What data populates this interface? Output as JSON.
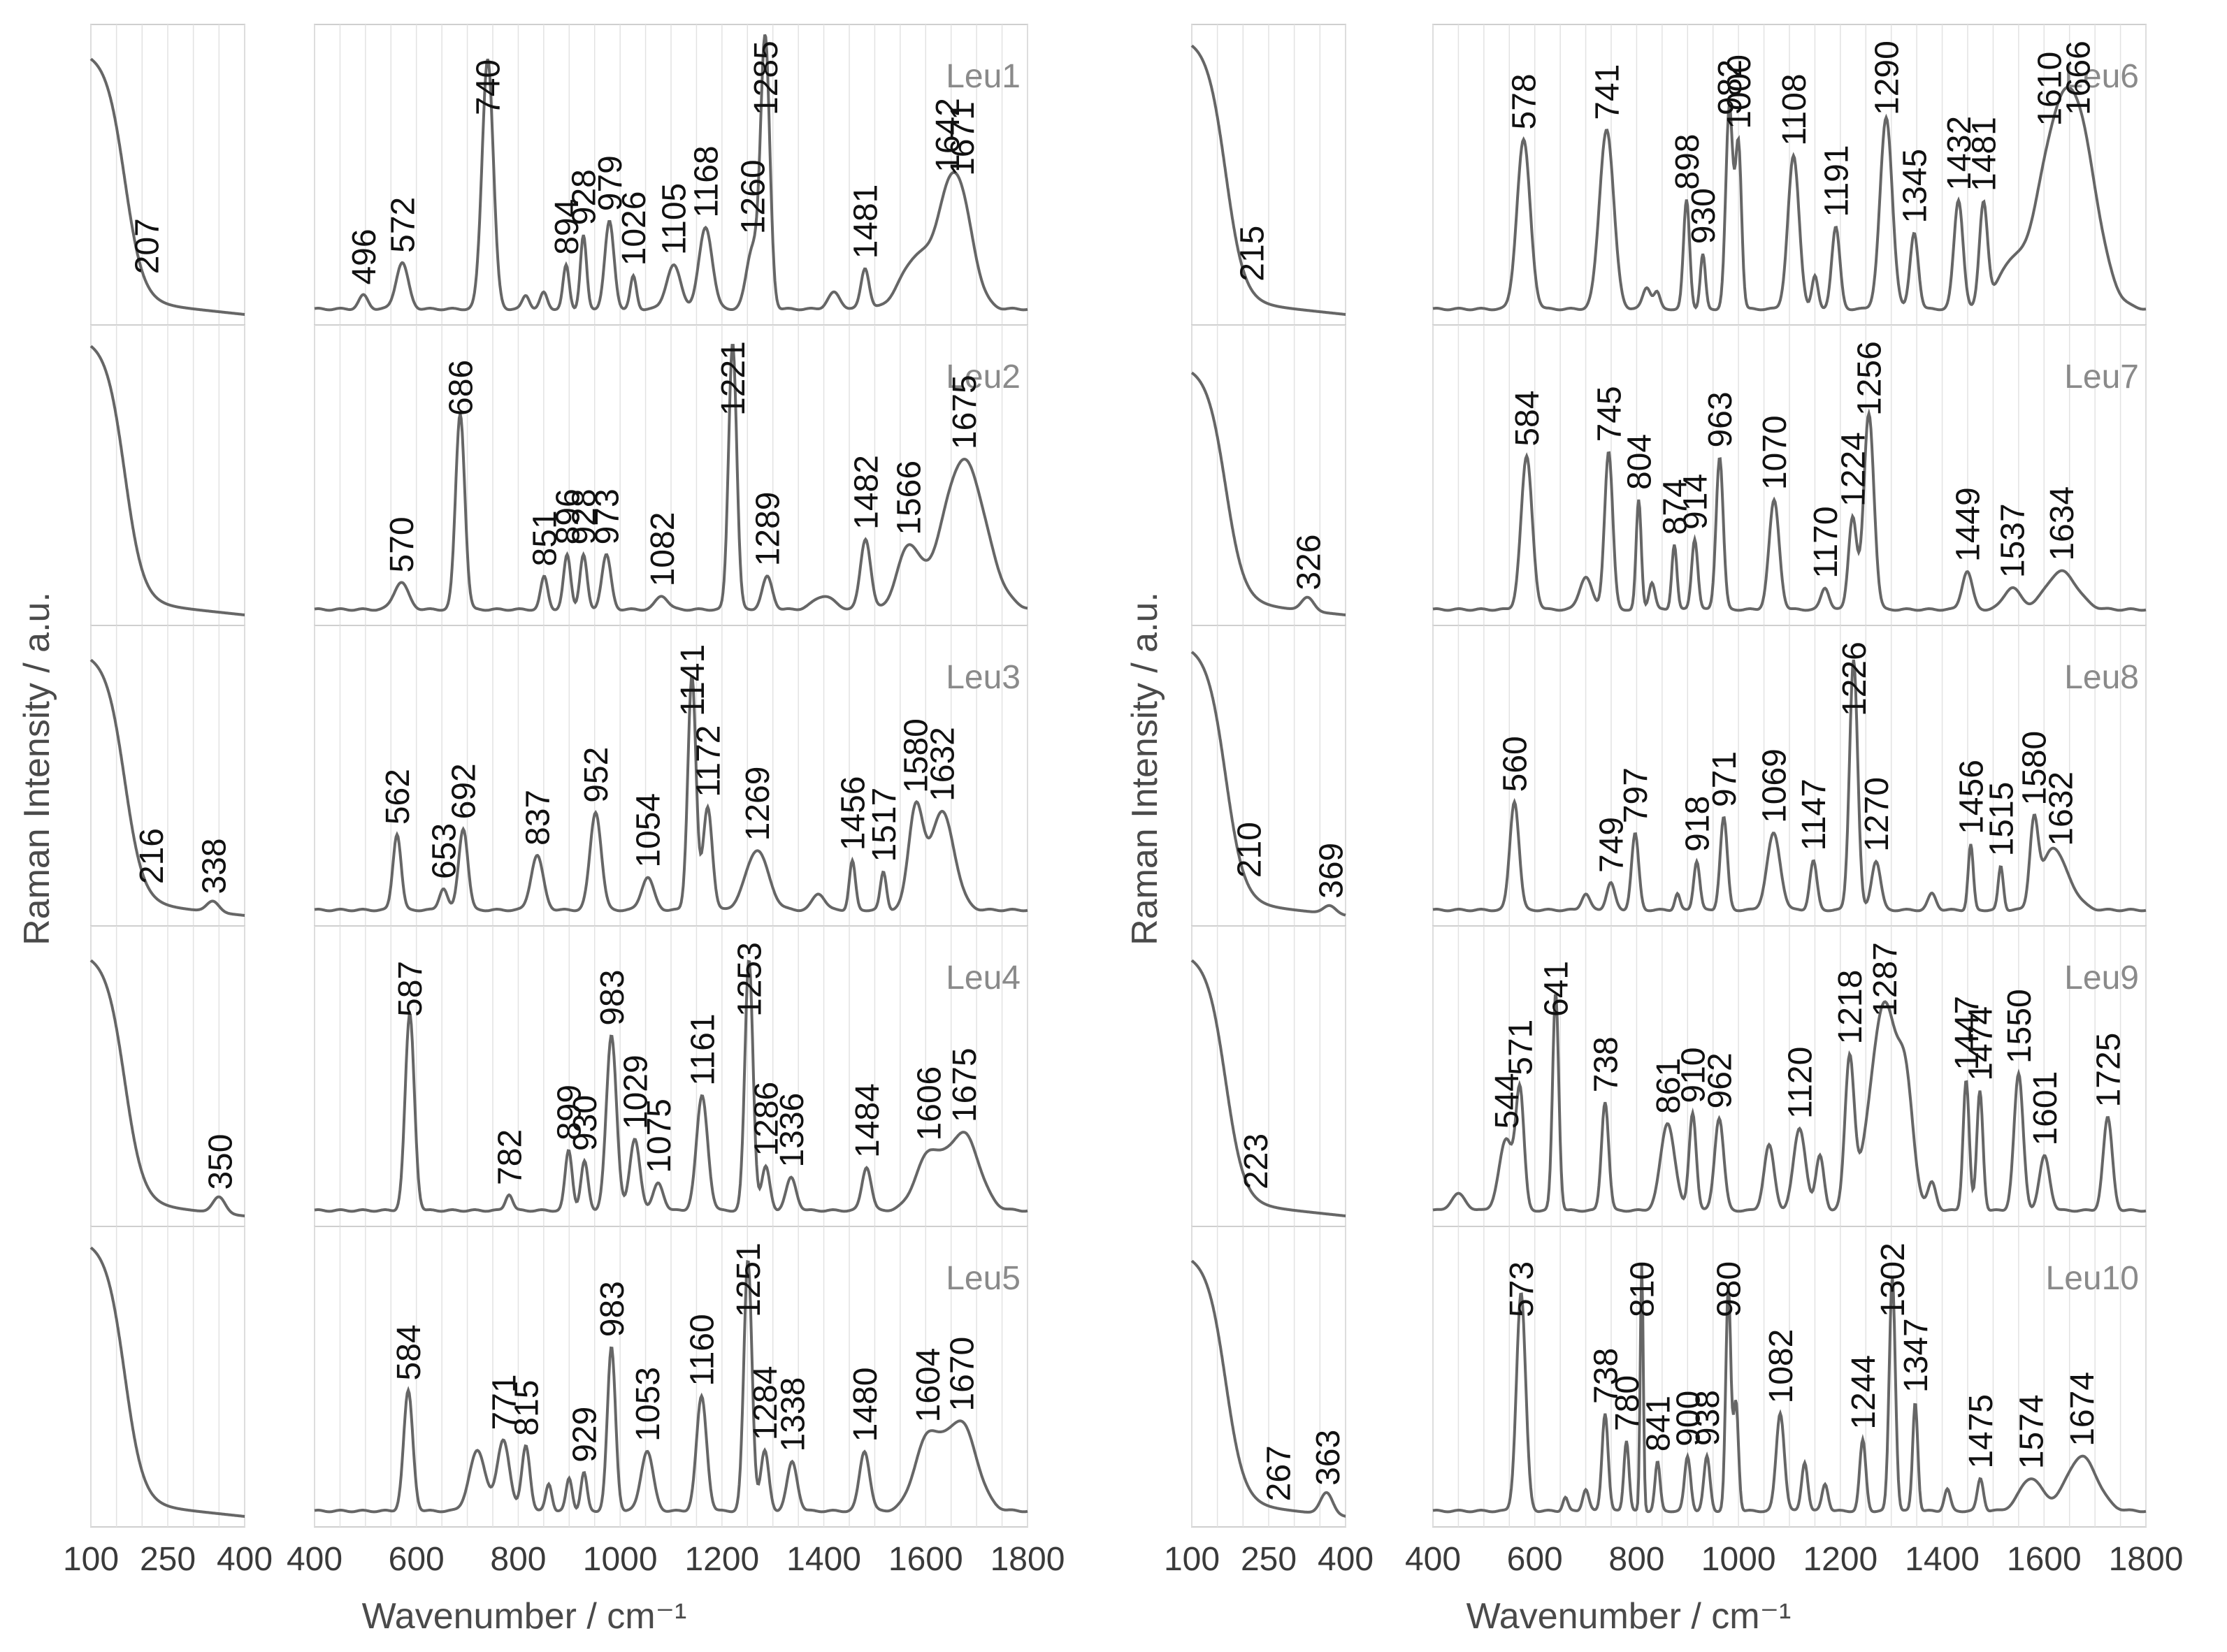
{
  "chart_data": {
    "type": "line",
    "colors": {
      "line": "#666666",
      "grid": "#e2e2e2",
      "frame": "#cfcfcf",
      "text": "#3a3a3a",
      "label": "#8a8a8a"
    },
    "ylabel": "Raman Intensity / a.u.",
    "xlabel": "Wavenumber / cm⁻¹",
    "low_xticks": [
      100,
      250,
      400
    ],
    "high_xticks": [
      400,
      600,
      800,
      1000,
      1200,
      1400,
      1600,
      1800
    ],
    "low_xlim": [
      100,
      400
    ],
    "high_xlim": [
      400,
      1800
    ],
    "samples": [
      {
        "name": "Leu1",
        "low": {
          "peaks": [
            207
          ],
          "labels": [
            207
          ],
          "decay": 0.9,
          "hump": null
        },
        "peaks": [
          [
            496,
            0.05,
            9
          ],
          [
            572,
            0.17,
            12
          ],
          [
            740,
            0.92,
            11
          ],
          [
            815,
            0.05,
            7
          ],
          [
            850,
            0.06,
            7
          ],
          [
            894,
            0.16,
            6
          ],
          [
            928,
            0.27,
            6
          ],
          [
            979,
            0.32,
            9
          ],
          [
            1026,
            0.12,
            6
          ],
          [
            1105,
            0.16,
            14
          ],
          [
            1168,
            0.3,
            13
          ],
          [
            1260,
            0.22,
            12
          ],
          [
            1285,
            0.98,
            9
          ],
          [
            1481,
            0.15,
            8
          ],
          [
            1420,
            0.06,
            12
          ],
          [
            1642,
            0.28,
            26
          ],
          [
            1671,
            0.3,
            26
          ],
          [
            1580,
            0.18,
            30
          ]
        ],
        "labels": [
          496,
          572,
          740,
          894,
          928,
          979,
          1026,
          1105,
          1168,
          1260,
          1285,
          1481,
          1642,
          1671
        ]
      },
      {
        "name": "Leu2",
        "low": {
          "peaks": [],
          "labels": [],
          "decay": 0.95,
          "hump": null
        },
        "peaks": [
          [
            570,
            0.1,
            14
          ],
          [
            686,
            0.72,
            9
          ],
          [
            851,
            0.12,
            7
          ],
          [
            896,
            0.2,
            7
          ],
          [
            928,
            0.2,
            7
          ],
          [
            973,
            0.2,
            9
          ],
          [
            1082,
            0.05,
            12
          ],
          [
            1221,
            0.98,
            8
          ],
          [
            1289,
            0.12,
            10
          ],
          [
            1482,
            0.26,
            10
          ],
          [
            1566,
            0.22,
            22
          ],
          [
            1675,
            0.55,
            42
          ],
          [
            1400,
            0.05,
            20
          ]
        ],
        "labels": [
          570,
          686,
          851,
          896,
          928,
          973,
          1082,
          1221,
          1289,
          1482,
          1566,
          1675
        ]
      },
      {
        "name": "Leu3",
        "low": {
          "peaks": [
            216,
            338
          ],
          "labels": [
            216,
            338
          ],
          "decay": 0.9,
          "hump": [
            338,
            0.04
          ]
        },
        "peaks": [
          [
            562,
            0.28,
            8
          ],
          [
            653,
            0.08,
            8
          ],
          [
            692,
            0.3,
            9
          ],
          [
            837,
            0.2,
            12
          ],
          [
            952,
            0.36,
            11
          ],
          [
            1054,
            0.12,
            12
          ],
          [
            1141,
            0.86,
            8
          ],
          [
            1172,
            0.38,
            9
          ],
          [
            1269,
            0.22,
            22
          ],
          [
            1456,
            0.18,
            6
          ],
          [
            1517,
            0.14,
            6
          ],
          [
            1580,
            0.36,
            14
          ],
          [
            1632,
            0.36,
            24
          ],
          [
            1390,
            0.06,
            12
          ]
        ],
        "labels": [
          562,
          653,
          692,
          837,
          952,
          1054,
          1141,
          1172,
          1269,
          1456,
          1517,
          1580,
          1632
        ]
      },
      {
        "name": "Leu4",
        "low": {
          "peaks": [
            350
          ],
          "labels": [
            350
          ],
          "decay": 0.9,
          "hump": [
            350,
            0.06
          ]
        },
        "peaks": [
          [
            587,
            0.72,
            9
          ],
          [
            782,
            0.06,
            7
          ],
          [
            899,
            0.22,
            7
          ],
          [
            930,
            0.18,
            7
          ],
          [
            983,
            0.64,
            10
          ],
          [
            1029,
            0.26,
            10
          ],
          [
            1075,
            0.1,
            10
          ],
          [
            1161,
            0.42,
            11
          ],
          [
            1253,
            0.92,
            8
          ],
          [
            1286,
            0.16,
            8
          ],
          [
            1336,
            0.12,
            10
          ],
          [
            1484,
            0.16,
            9
          ],
          [
            1606,
            0.2,
            26
          ],
          [
            1675,
            0.28,
            30
          ]
        ],
        "labels": [
          587,
          782,
          899,
          930,
          983,
          1029,
          1075,
          1161,
          1253,
          1286,
          1336,
          1484,
          1606,
          1675
        ]
      },
      {
        "name": "Leu5",
        "low": {
          "peaks": [],
          "labels": [],
          "decay": 0.95,
          "hump": null
        },
        "peaks": [
          [
            584,
            0.44,
            9
          ],
          [
            720,
            0.22,
            16
          ],
          [
            771,
            0.26,
            12
          ],
          [
            815,
            0.24,
            8
          ],
          [
            860,
            0.1,
            6
          ],
          [
            900,
            0.12,
            6
          ],
          [
            929,
            0.14,
            6
          ],
          [
            983,
            0.6,
            8
          ],
          [
            1053,
            0.22,
            12
          ],
          [
            1160,
            0.42,
            10
          ],
          [
            1251,
            0.92,
            8
          ],
          [
            1284,
            0.22,
            8
          ],
          [
            1338,
            0.18,
            10
          ],
          [
            1480,
            0.22,
            10
          ],
          [
            1604,
            0.26,
            26
          ],
          [
            1670,
            0.32,
            30
          ]
        ],
        "labels": [
          584,
          771,
          815,
          929,
          983,
          1053,
          1160,
          1251,
          1284,
          1338,
          1480,
          1604,
          1670
        ]
      },
      {
        "name": "Leu6",
        "low": {
          "peaks": [
            215
          ],
          "labels": [
            215
          ],
          "decay": 0.95,
          "hump": null
        },
        "peaks": [
          [
            578,
            0.62,
            13
          ],
          [
            741,
            0.66,
            14
          ],
          [
            820,
            0.08,
            8
          ],
          [
            840,
            0.06,
            6
          ],
          [
            898,
            0.4,
            6
          ],
          [
            930,
            0.2,
            5
          ],
          [
            982,
            0.74,
            7
          ],
          [
            1000,
            0.6,
            6
          ],
          [
            1108,
            0.56,
            11
          ],
          [
            1150,
            0.12,
            6
          ],
          [
            1191,
            0.3,
            8
          ],
          [
            1290,
            0.7,
            12
          ],
          [
            1345,
            0.28,
            8
          ],
          [
            1432,
            0.4,
            9
          ],
          [
            1481,
            0.38,
            8
          ],
          [
            1610,
            0.42,
            36
          ],
          [
            1666,
            0.64,
            38
          ],
          [
            1530,
            0.14,
            24
          ]
        ],
        "labels": [
          578,
          741,
          898,
          930,
          982,
          1000,
          1108,
          1191,
          1290,
          1345,
          1432,
          1481,
          1610,
          1666
        ]
      },
      {
        "name": "Leu7",
        "low": {
          "peaks": [
            326
          ],
          "labels": [
            326
          ],
          "decay": 0.85,
          "hump": [
            326,
            0.05
          ]
        },
        "peaks": [
          [
            584,
            0.56,
            11
          ],
          [
            700,
            0.12,
            12
          ],
          [
            745,
            0.58,
            8
          ],
          [
            804,
            0.4,
            5
          ],
          [
            830,
            0.1,
            6
          ],
          [
            874,
            0.24,
            5
          ],
          [
            914,
            0.26,
            6
          ],
          [
            963,
            0.56,
            7
          ],
          [
            1070,
            0.4,
            10
          ],
          [
            1170,
            0.08,
            8
          ],
          [
            1224,
            0.34,
            8
          ],
          [
            1256,
            0.72,
            10
          ],
          [
            1449,
            0.14,
            10
          ],
          [
            1537,
            0.08,
            16
          ],
          [
            1634,
            0.14,
            30
          ]
        ],
        "labels": [
          584,
          745,
          804,
          874,
          914,
          963,
          1070,
          1170,
          1224,
          1256,
          1449,
          1537,
          1634
        ]
      },
      {
        "name": "Leu8",
        "low": {
          "peaks": [
            210,
            369
          ],
          "labels": [
            210,
            369
          ],
          "decay": 0.93,
          "hump": [
            369,
            0.03
          ]
        },
        "peaks": [
          [
            560,
            0.4,
            9
          ],
          [
            700,
            0.06,
            8
          ],
          [
            749,
            0.1,
            8
          ],
          [
            797,
            0.28,
            7
          ],
          [
            880,
            0.06,
            5
          ],
          [
            918,
            0.18,
            6
          ],
          [
            971,
            0.34,
            7
          ],
          [
            1069,
            0.28,
            13
          ],
          [
            1147,
            0.18,
            7
          ],
          [
            1226,
            0.92,
            8
          ],
          [
            1270,
            0.18,
            9
          ],
          [
            1380,
            0.06,
            8
          ],
          [
            1456,
            0.24,
            5
          ],
          [
            1515,
            0.16,
            5
          ],
          [
            1580,
            0.3,
            8
          ],
          [
            1632,
            0.14,
            26
          ],
          [
            1610,
            0.12,
            18
          ]
        ],
        "labels": [
          560,
          749,
          797,
          918,
          971,
          1069,
          1147,
          1226,
          1270,
          1456,
          1515,
          1580,
          1632
        ]
      },
      {
        "name": "Leu9",
        "low": {
          "peaks": [
            223
          ],
          "labels": [
            223
          ],
          "decay": 0.9,
          "hump": null
        },
        "peaks": [
          [
            450,
            0.06,
            14
          ],
          [
            544,
            0.26,
            14
          ],
          [
            571,
            0.42,
            8
          ],
          [
            641,
            0.8,
            6
          ],
          [
            738,
            0.4,
            7
          ],
          [
            861,
            0.32,
            14
          ],
          [
            910,
            0.36,
            7
          ],
          [
            962,
            0.34,
            9
          ],
          [
            1060,
            0.24,
            10
          ],
          [
            1120,
            0.3,
            12
          ],
          [
            1160,
            0.2,
            8
          ],
          [
            1218,
            0.54,
            9
          ],
          [
            1287,
            0.76,
            28
          ],
          [
            1330,
            0.3,
            14
          ],
          [
            1380,
            0.1,
            8
          ],
          [
            1447,
            0.48,
            6
          ],
          [
            1474,
            0.44,
            6
          ],
          [
            1550,
            0.5,
            9
          ],
          [
            1601,
            0.2,
            10
          ],
          [
            1725,
            0.34,
            9
          ]
        ],
        "labels": [
          544,
          571,
          641,
          738,
          861,
          910,
          962,
          1120,
          1218,
          1287,
          1447,
          1474,
          1550,
          1601,
          1725
        ]
      },
      {
        "name": "Leu10",
        "low": {
          "peaks": [
            267,
            363
          ],
          "labels": [
            267,
            363
          ],
          "decay": 0.9,
          "hump": [
            363,
            0.08
          ]
        },
        "peaks": [
          [
            573,
            0.8,
            9
          ],
          [
            660,
            0.05,
            5
          ],
          [
            700,
            0.08,
            6
          ],
          [
            738,
            0.36,
            6
          ],
          [
            780,
            0.26,
            5
          ],
          [
            810,
            0.9,
            3
          ],
          [
            841,
            0.18,
            5
          ],
          [
            900,
            0.2,
            6
          ],
          [
            938,
            0.2,
            6
          ],
          [
            980,
            0.82,
            5
          ],
          [
            995,
            0.4,
            5
          ],
          [
            1082,
            0.36,
            8
          ],
          [
            1130,
            0.18,
            6
          ],
          [
            1170,
            0.1,
            6
          ],
          [
            1244,
            0.26,
            6
          ],
          [
            1302,
            0.86,
            6
          ],
          [
            1347,
            0.4,
            5
          ],
          [
            1410,
            0.08,
            6
          ],
          [
            1475,
            0.12,
            6
          ],
          [
            1574,
            0.12,
            22
          ],
          [
            1674,
            0.2,
            30
          ]
        ],
        "labels": [
          573,
          738,
          780,
          810,
          841,
          900,
          938,
          980,
          1082,
          1244,
          1302,
          1347,
          1475,
          1574,
          1674
        ]
      }
    ]
  }
}
